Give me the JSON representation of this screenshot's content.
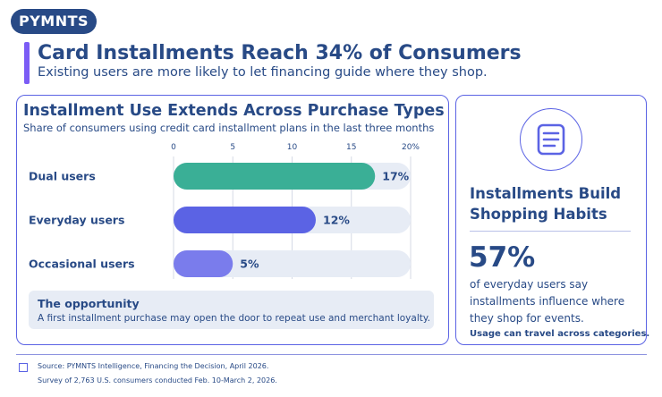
{
  "brand": "PYMNTS",
  "header": {
    "title": "Card Installments Reach 34% of Consumers",
    "subtitle": "Existing users are more likely to let financing guide where they shop."
  },
  "chart_data": {
    "type": "bar",
    "orientation": "horizontal",
    "title": "Installment Use Extends Across Purchase Types",
    "subtitle": "Share of consumers using credit card installment plans in the last three months",
    "categories": [
      "Dual users",
      "Everyday users",
      "Occasional users"
    ],
    "values": [
      17,
      12,
      5
    ],
    "value_labels": [
      "17%",
      "12%",
      "5%"
    ],
    "colors": [
      "#3aaf96",
      "#5b63e4",
      "#7a7cec"
    ],
    "track_color": "#e7ecf5",
    "xlim": [
      0,
      20
    ],
    "ticks": [
      0,
      5,
      10,
      15,
      20
    ],
    "tick_labels": [
      "0",
      "5",
      "10",
      "15",
      "20%"
    ],
    "grid": true
  },
  "opportunity": {
    "title": "The opportunity",
    "text": "A first installment purchase may open the door to repeat use and merchant loyalty."
  },
  "side": {
    "icon": "document-icon",
    "title": "Installments Build Shopping Habits",
    "stat": "57%",
    "text": "of everyday users say installments influence where they shop for events.",
    "note": "Usage can travel across categories."
  },
  "footer": {
    "source": "Source: PYMNTS Intelligence, Financing the Decision, April 2026.",
    "survey": "Survey of 2,763 U.S. consumers conducted Feb. 10-March 2, 2026."
  }
}
